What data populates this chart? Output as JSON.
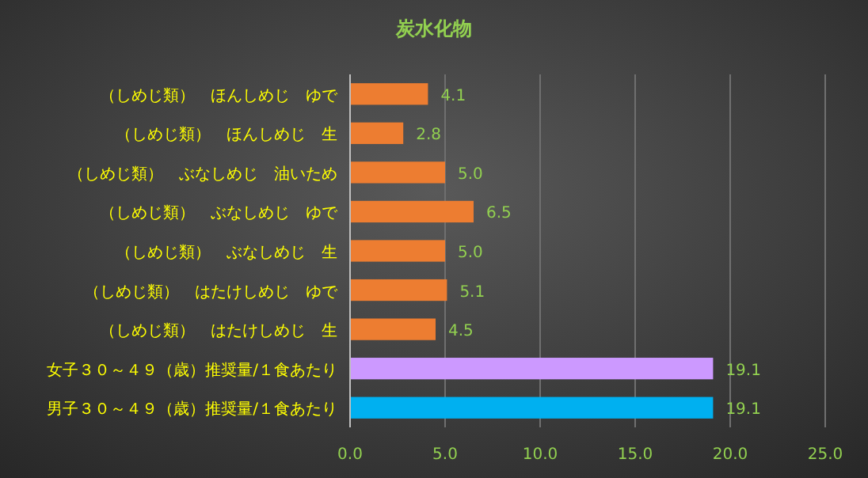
{
  "chart_data": {
    "type": "bar",
    "orientation": "horizontal",
    "title": "炭水化物",
    "categories": [
      "（しめじ類）　ほんしめじ　ゆで",
      "（しめじ類）　ほんしめじ　生",
      "（しめじ類）　ぶなしめじ　油いため",
      "（しめじ類）　ぶなしめじ　ゆで",
      "（しめじ類）　ぶなしめじ　生",
      "（しめじ類）　はたけしめじ　ゆで",
      "（しめじ類）　はたけしめじ　生",
      "女子３０～４９（歳）推奨量/１食あたり",
      "男子３０～４９（歳）推奨量/１食あたり"
    ],
    "values": [
      4.1,
      2.8,
      5.0,
      6.5,
      5.0,
      5.1,
      4.5,
      19.1,
      19.1
    ],
    "value_labels": [
      "4.1",
      "2.8",
      "5.0",
      "6.5",
      "5.0",
      "5.1",
      "4.5",
      "19.1",
      "19.1"
    ],
    "colors": [
      "#ed7d31",
      "#ed7d31",
      "#ed7d31",
      "#ed7d31",
      "#ed7d31",
      "#ed7d31",
      "#ed7d31",
      "#cc99ff",
      "#00b0f0"
    ],
    "xlim": [
      0,
      25
    ],
    "xticks": [
      {
        "value": 0,
        "label": "0.0"
      },
      {
        "value": 5,
        "label": "5.0"
      },
      {
        "value": 10,
        "label": "10.0"
      },
      {
        "value": 15,
        "label": "15.0"
      },
      {
        "value": 20,
        "label": "20.0"
      },
      {
        "value": 25,
        "label": "25.0"
      }
    ],
    "grid": "x"
  }
}
